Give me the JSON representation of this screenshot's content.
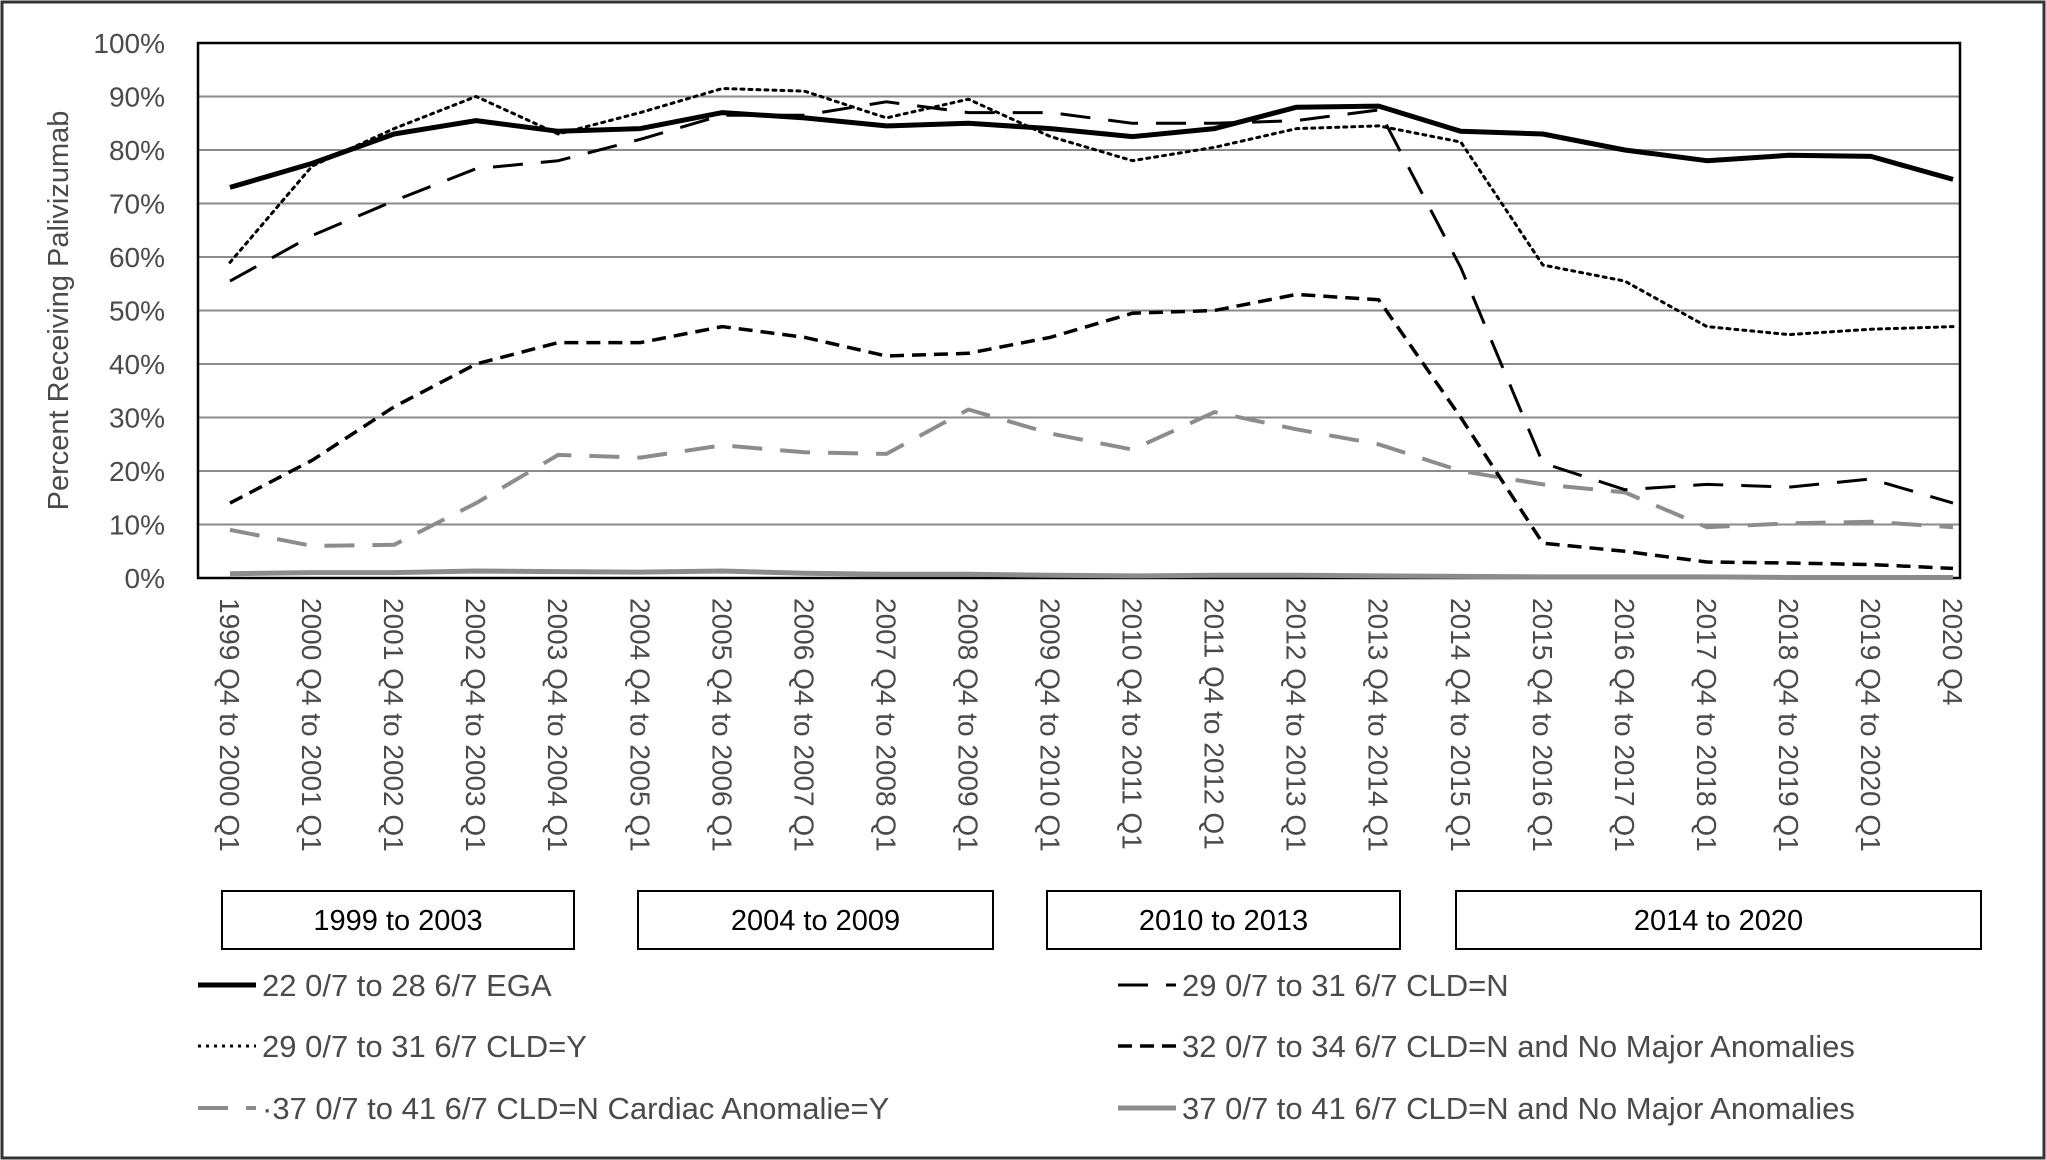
{
  "chart_data": {
    "type": "line",
    "title": "",
    "ylabel": "Percent Receiving Palivizumab",
    "xlabel": "",
    "ylim": [
      0,
      100
    ],
    "y_ticks": [
      "0%",
      "10%",
      "20%",
      "30%",
      "40%",
      "50%",
      "60%",
      "70%",
      "80%",
      "90%",
      "100%"
    ],
    "grid": true,
    "legend_position": "bottom",
    "categories": [
      "1999 Q4 to 2000 Q1",
      "2000 Q4 to 2001 Q1",
      "2001 Q4 to 2002 Q1",
      "2002 Q4 to 2003 Q1",
      "2003 Q4 to 2004 Q1",
      "2004 Q4 to 2005 Q1",
      "2005 Q4 to 2006 Q1",
      "2006 Q4 to 2007 Q1",
      "2007 Q4 to 2008 Q1",
      "2008 Q4 to 2009 Q1",
      "2009 Q4 to 2010 Q1",
      "2010 Q4 to 2011 Q1",
      "2011 Q4 to 2012 Q1",
      "2012 Q4 to 2013 Q1",
      "2013 Q4 to 2014 Q1",
      "2014 Q4 to 2015 Q1",
      "2015 Q4 to 2016 Q1",
      "2016 Q4 to 2017 Q1",
      "2017 Q4 to 2018 Q1",
      "2018 Q4 to 2019 Q1",
      "2019 Q4 to 2020 Q1",
      "2020 Q4"
    ],
    "periods": [
      {
        "label": "1999 to 2003",
        "from": 0,
        "to": 4
      },
      {
        "label": "2004 to 2009",
        "from": 5,
        "to": 9
      },
      {
        "label": "2010 to 2013",
        "from": 10,
        "to": 13
      },
      {
        "label": "2014 to 2020",
        "from": 14,
        "to": 21
      }
    ],
    "series": [
      {
        "name": "22 0/7 to 28 6/7 EGA",
        "color": "#000000",
        "style": "solid",
        "width": 5,
        "values": [
          73,
          77.5,
          83,
          85.5,
          83.5,
          84,
          87,
          86,
          84.5,
          85,
          84,
          82.5,
          84,
          88,
          88.2,
          83.5,
          83,
          80,
          78,
          79,
          78.8,
          74.5
        ]
      },
      {
        "name": "29 0/7 to 31 6/7 CLD=N",
        "color": "#000000",
        "style": "dash-long",
        "width": 3,
        "values": [
          55.5,
          64,
          70.5,
          76.5,
          78,
          82,
          86.5,
          86.5,
          89,
          87,
          87,
          85,
          85,
          85.5,
          87.5,
          58,
          21.5,
          16.5,
          17.5,
          17,
          18.5,
          14
        ]
      },
      {
        "name": "29 0/7 to 31 6/7 CLD=Y",
        "color": "#000000",
        "style": "dot",
        "width": 3,
        "values": [
          59,
          77,
          84,
          90,
          83,
          87,
          91.5,
          91,
          86,
          89.5,
          82.5,
          78,
          80.5,
          84,
          84.5,
          81.5,
          58.5,
          55.5,
          47,
          45.5,
          46.5,
          47
        ]
      },
      {
        "name": "32 0/7 to 34 6/7 CLD=N and No Major Anomalies",
        "color": "#000000",
        "style": "dash-short",
        "width": 3.5,
        "values": [
          14,
          22,
          32,
          40,
          44,
          44,
          47,
          45,
          41.5,
          42,
          45,
          49.5,
          50,
          53,
          52,
          30,
          6.5,
          5,
          3,
          2.8,
          2.5,
          1.8
        ]
      },
      {
        "name": "·37 0/7 to 41 6/7 CLD=N Cardiac Anomalie=Y",
        "color": "#8c8c8c",
        "style": "dash-long",
        "width": 4,
        "values": [
          9,
          6,
          6.2,
          14,
          23,
          22.5,
          24.8,
          23.5,
          23.2,
          31.5,
          27,
          24,
          31,
          27.8,
          25,
          20,
          17.5,
          16,
          9.5,
          10.2,
          10.5,
          9.5
        ]
      },
      {
        "name": "37 0/7 to 41 6/7 CLD=N and No Major Anomalies",
        "color": "#8c8c8c",
        "style": "solid",
        "width": 5,
        "values": [
          0.8,
          1,
          1,
          1.3,
          1.2,
          1.1,
          1.3,
          0.9,
          0.7,
          0.7,
          0.5,
          0.4,
          0.5,
          0.5,
          0.4,
          0.3,
          0.2,
          0.2,
          0.2,
          0.1,
          0.1,
          0.1
        ]
      }
    ]
  }
}
